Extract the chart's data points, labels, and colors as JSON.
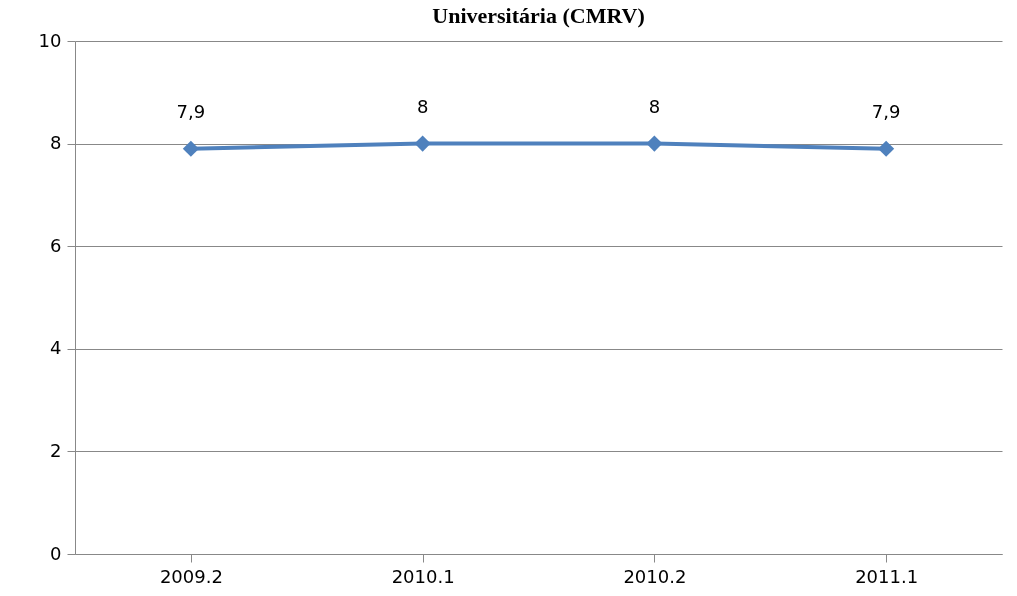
{
  "chart_data": {
    "type": "line",
    "title": "Universitária (CMRV)",
    "categories": [
      "2009.2",
      "2010.1",
      "2010.2",
      "2011.1"
    ],
    "series": [
      {
        "color": "#4f81bd",
        "values": [
          7.9,
          8,
          8,
          7.9
        ],
        "value_labels": [
          "7,9",
          "8",
          "8",
          "7,9"
        ]
      }
    ],
    "ylim": [
      0,
      10
    ],
    "yticks": [
      0,
      2,
      4,
      6,
      8,
      10
    ],
    "grid": "y",
    "marker": "diamond",
    "line_style": "solid",
    "legend": false
  }
}
